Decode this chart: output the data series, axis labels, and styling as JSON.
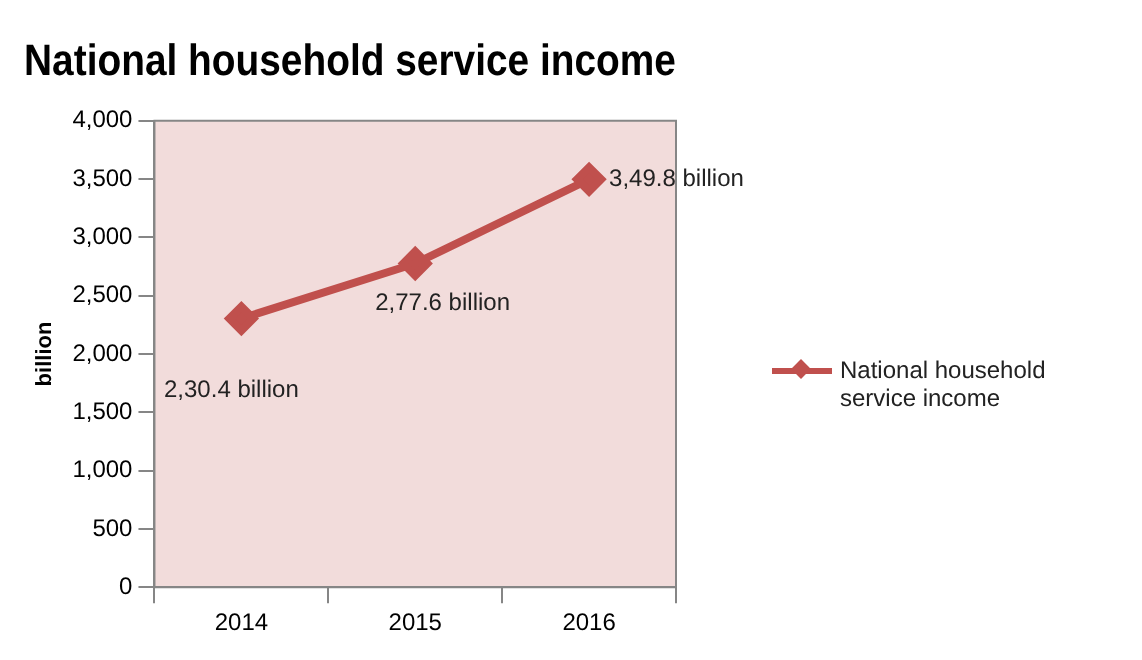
{
  "chart_data": {
    "type": "line",
    "title": "National household service income",
    "ylabel": "billion",
    "categories": [
      "2014",
      "2015",
      "2016"
    ],
    "series": [
      {
        "name": "National household service income",
        "color": "#c0504d",
        "values": [
          2304,
          2776,
          3498
        ],
        "value_labels": [
          "2,30.4 billion",
          "2,77.6 billion",
          "3,49.8 billion"
        ]
      }
    ],
    "ylim": [
      0,
      4000
    ],
    "yticks": [
      0,
      500,
      {
        "value": 1000,
        "label": "1,000"
      },
      {
        "value": 1500,
        "label": "1,500"
      },
      {
        "value": 2000,
        "label": "2,000"
      },
      {
        "value": 2500,
        "label": "2,500"
      },
      {
        "value": 3000,
        "label": "3,000"
      },
      {
        "value": 3500,
        "label": "3,500"
      },
      {
        "value": 4000,
        "label": "4,000"
      }
    ],
    "grid": false,
    "legend": "right",
    "marker": "diamond",
    "line_style": "solid"
  }
}
